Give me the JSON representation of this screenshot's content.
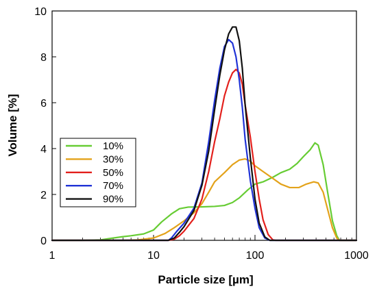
{
  "chart_data": {
    "type": "line",
    "xlabel": "Particle size [µm]",
    "ylabel": "Volume [%]",
    "xscale": "log",
    "xlim": [
      1,
      1000
    ],
    "ylim": [
      0,
      10
    ],
    "xticks": [
      {
        "value": 1,
        "label": "1"
      },
      {
        "value": 10,
        "label": "10"
      },
      {
        "value": 100,
        "label": "100"
      },
      {
        "value": 1000,
        "label": "1000"
      }
    ],
    "yticks": [
      {
        "value": 0,
        "label": "0"
      },
      {
        "value": 2,
        "label": "2"
      },
      {
        "value": 4,
        "label": "4"
      },
      {
        "value": 6,
        "label": "6"
      },
      {
        "value": 8,
        "label": "8"
      },
      {
        "value": 10,
        "label": "10"
      }
    ],
    "grid": false,
    "legend_position": "lower-left",
    "series": [
      {
        "name": "10%",
        "color": "#66cc33",
        "points": [
          [
            1,
            0
          ],
          [
            2,
            0
          ],
          [
            3,
            0.02
          ],
          [
            4,
            0.1
          ],
          [
            5,
            0.16
          ],
          [
            6,
            0.2
          ],
          [
            8,
            0.28
          ],
          [
            10,
            0.45
          ],
          [
            12,
            0.8
          ],
          [
            15,
            1.15
          ],
          [
            18,
            1.38
          ],
          [
            22,
            1.45
          ],
          [
            30,
            1.46
          ],
          [
            40,
            1.48
          ],
          [
            50,
            1.52
          ],
          [
            60,
            1.65
          ],
          [
            70,
            1.85
          ],
          [
            85,
            2.2
          ],
          [
            100,
            2.45
          ],
          [
            120,
            2.55
          ],
          [
            150,
            2.75
          ],
          [
            180,
            2.95
          ],
          [
            220,
            3.1
          ],
          [
            260,
            3.35
          ],
          [
            300,
            3.65
          ],
          [
            350,
            3.95
          ],
          [
            390,
            4.25
          ],
          [
            420,
            4.15
          ],
          [
            470,
            3.3
          ],
          [
            520,
            2.1
          ],
          [
            580,
            0.85
          ],
          [
            640,
            0.2
          ],
          [
            680,
            0
          ],
          [
            1000,
            0
          ]
        ]
      },
      {
        "name": "30%",
        "color": "#e3a21a",
        "points": [
          [
            1,
            0
          ],
          [
            5,
            0
          ],
          [
            7,
            0.02
          ],
          [
            10,
            0.1
          ],
          [
            13,
            0.3
          ],
          [
            16,
            0.55
          ],
          [
            20,
            0.85
          ],
          [
            25,
            1.2
          ],
          [
            30,
            1.6
          ],
          [
            35,
            2.1
          ],
          [
            40,
            2.55
          ],
          [
            50,
            2.95
          ],
          [
            60,
            3.3
          ],
          [
            70,
            3.5
          ],
          [
            80,
            3.55
          ],
          [
            90,
            3.45
          ],
          [
            100,
            3.25
          ],
          [
            120,
            3.0
          ],
          [
            150,
            2.7
          ],
          [
            180,
            2.45
          ],
          [
            220,
            2.3
          ],
          [
            270,
            2.3
          ],
          [
            320,
            2.45
          ],
          [
            380,
            2.55
          ],
          [
            420,
            2.5
          ],
          [
            470,
            2.1
          ],
          [
            520,
            1.35
          ],
          [
            580,
            0.55
          ],
          [
            640,
            0.1
          ],
          [
            680,
            0
          ],
          [
            1000,
            0
          ]
        ]
      },
      {
        "name": "50%",
        "color": "#e3201c",
        "points": [
          [
            1,
            0
          ],
          [
            14,
            0
          ],
          [
            16,
            0.05
          ],
          [
            18,
            0.2
          ],
          [
            20,
            0.4
          ],
          [
            25,
            0.95
          ],
          [
            30,
            1.8
          ],
          [
            35,
            3.0
          ],
          [
            40,
            4.3
          ],
          [
            45,
            5.3
          ],
          [
            50,
            6.3
          ],
          [
            55,
            6.9
          ],
          [
            60,
            7.3
          ],
          [
            65,
            7.45
          ],
          [
            70,
            7.3
          ],
          [
            75,
            6.8
          ],
          [
            80,
            5.9
          ],
          [
            90,
            4.5
          ],
          [
            100,
            3.0
          ],
          [
            110,
            1.8
          ],
          [
            120,
            0.9
          ],
          [
            135,
            0.25
          ],
          [
            150,
            0.02
          ],
          [
            160,
            0
          ],
          [
            1000,
            0
          ]
        ]
      },
      {
        "name": "70%",
        "color": "#1f32d6",
        "points": [
          [
            1,
            0
          ],
          [
            14,
            0
          ],
          [
            15,
            0.1
          ],
          [
            17,
            0.4
          ],
          [
            20,
            0.75
          ],
          [
            25,
            1.4
          ],
          [
            30,
            2.5
          ],
          [
            35,
            4.3
          ],
          [
            40,
            6.1
          ],
          [
            45,
            7.5
          ],
          [
            50,
            8.45
          ],
          [
            55,
            8.75
          ],
          [
            60,
            8.6
          ],
          [
            65,
            8.0
          ],
          [
            70,
            7.0
          ],
          [
            75,
            5.8
          ],
          [
            80,
            4.4
          ],
          [
            90,
            2.6
          ],
          [
            100,
            1.4
          ],
          [
            110,
            0.55
          ],
          [
            125,
            0.1
          ],
          [
            140,
            0
          ],
          [
            1000,
            0
          ]
        ]
      },
      {
        "name": "90%",
        "color": "#111111",
        "points": [
          [
            1,
            0
          ],
          [
            14,
            0
          ],
          [
            16,
            0.1
          ],
          [
            18,
            0.35
          ],
          [
            20,
            0.6
          ],
          [
            25,
            1.3
          ],
          [
            30,
            2.4
          ],
          [
            35,
            3.9
          ],
          [
            40,
            5.7
          ],
          [
            45,
            7.2
          ],
          [
            50,
            8.3
          ],
          [
            55,
            9.0
          ],
          [
            60,
            9.3
          ],
          [
            65,
            9.3
          ],
          [
            70,
            8.7
          ],
          [
            75,
            7.5
          ],
          [
            80,
            5.9
          ],
          [
            90,
            3.6
          ],
          [
            100,
            1.8
          ],
          [
            110,
            0.75
          ],
          [
            125,
            0.15
          ],
          [
            140,
            0
          ],
          [
            1000,
            0
          ]
        ]
      }
    ]
  }
}
